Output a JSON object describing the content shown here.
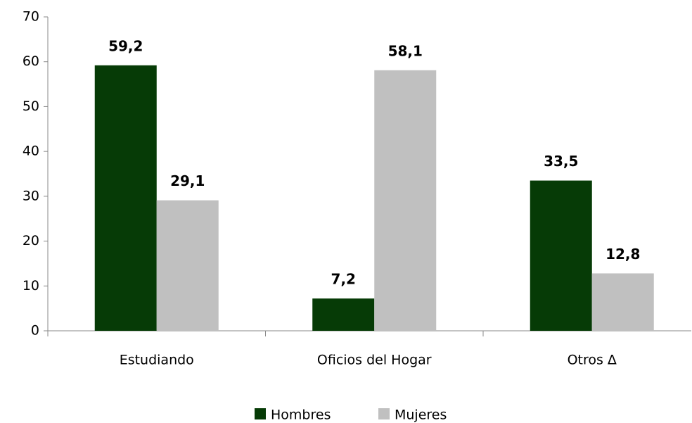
{
  "chart_data": {
    "type": "bar",
    "categories": [
      "Estudiando",
      "Oficios del Hogar",
      "Otros Δ"
    ],
    "series": [
      {
        "name": "Hombres",
        "color": "#063b06",
        "values": [
          59.2,
          7.2,
          33.5
        ],
        "value_labels": [
          "59,2",
          "7,2",
          "33,5"
        ]
      },
      {
        "name": "Mujeres",
        "color": "#c0c0c0",
        "values": [
          29.1,
          58.1,
          12.8
        ],
        "value_labels": [
          "29,1",
          "58,1",
          "12,8"
        ]
      }
    ],
    "ylim": [
      0,
      70
    ],
    "yticks": [
      0,
      10,
      20,
      30,
      40,
      50,
      60,
      70
    ],
    "grid": false,
    "legend": "bottom"
  }
}
